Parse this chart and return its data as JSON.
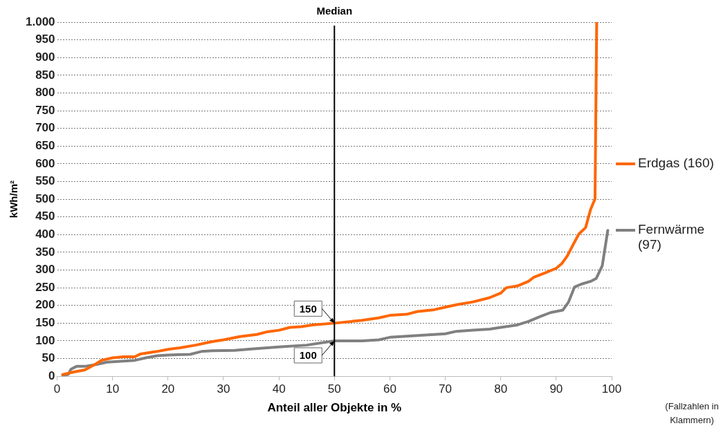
{
  "chart_data": {
    "type": "line",
    "xlabel": "Anteil aller Objekte in %",
    "ylabel": "kWh/m²",
    "xlim": [
      0,
      100
    ],
    "xticks": [
      0,
      10,
      20,
      30,
      40,
      50,
      60,
      70,
      80,
      90,
      100
    ],
    "ylim": [
      0,
      1000
    ],
    "yticks": [
      0,
      50,
      100,
      150,
      200,
      250,
      300,
      350,
      400,
      450,
      500,
      550,
      600,
      650,
      700,
      750,
      800,
      850,
      900,
      950,
      {
        "value": 1000,
        "label": "1.000"
      }
    ],
    "grid": "y",
    "legend": "right",
    "marker": "none",
    "line_style": "solid",
    "ref_lines": [
      {
        "axis": "x",
        "value": 50,
        "label": "Median",
        "color": "#000000"
      }
    ],
    "annotations": [
      {
        "text": "150",
        "x": 50,
        "y": 150
      },
      {
        "text": "100",
        "x": 50,
        "y": 100
      },
      "(Fallzahlen in Klammern)"
    ],
    "series": [
      {
        "name": "Erdgas (160)",
        "color": "#ff6600",
        "x": [
          1,
          3,
          5,
          7,
          8,
          10,
          12,
          14,
          15,
          18,
          20,
          22,
          25,
          28,
          30,
          33,
          36,
          38,
          40,
          42,
          44,
          46,
          50,
          55,
          58,
          60,
          63,
          65,
          68,
          70,
          72,
          75,
          78,
          80,
          81,
          83,
          85,
          86,
          88,
          90,
          91,
          92,
          93,
          94.1,
          95.3,
          96.2,
          97,
          97.3
        ],
        "values": [
          5,
          12,
          18,
          35,
          45,
          52,
          55,
          55,
          63,
          70,
          76,
          80,
          88,
          98,
          103,
          112,
          118,
          126,
          130,
          138,
          140,
          145,
          150,
          158,
          165,
          172,
          175,
          183,
          188,
          195,
          202,
          210,
          222,
          235,
          250,
          255,
          268,
          280,
          292,
          305,
          318,
          340,
          370,
          402,
          420,
          471,
          501,
          1000
        ]
      },
      {
        "name": "Fernwärme (97)",
        "color": "#808080",
        "x": [
          1,
          2,
          2.5,
          3.5,
          5,
          7,
          9,
          12,
          14,
          16,
          18,
          20,
          24,
          26,
          28,
          32,
          35,
          40,
          45,
          50,
          55,
          58,
          60,
          65,
          70,
          72,
          75,
          78,
          80,
          83,
          85,
          87,
          89,
          91.2,
          92.2,
          93.3,
          94.5,
          96.2,
          97.2,
          98.3,
          99.3
        ],
        "values": [
          3,
          5,
          20,
          28,
          28,
          33,
          40,
          43,
          45,
          52,
          58,
          60,
          62,
          70,
          72,
          73,
          77,
          83,
          88,
          100,
          100,
          103,
          110,
          115,
          120,
          127,
          130,
          133,
          138,
          145,
          155,
          168,
          180,
          187,
          209,
          252,
          260,
          268,
          276,
          312,
          412
        ]
      }
    ]
  }
}
